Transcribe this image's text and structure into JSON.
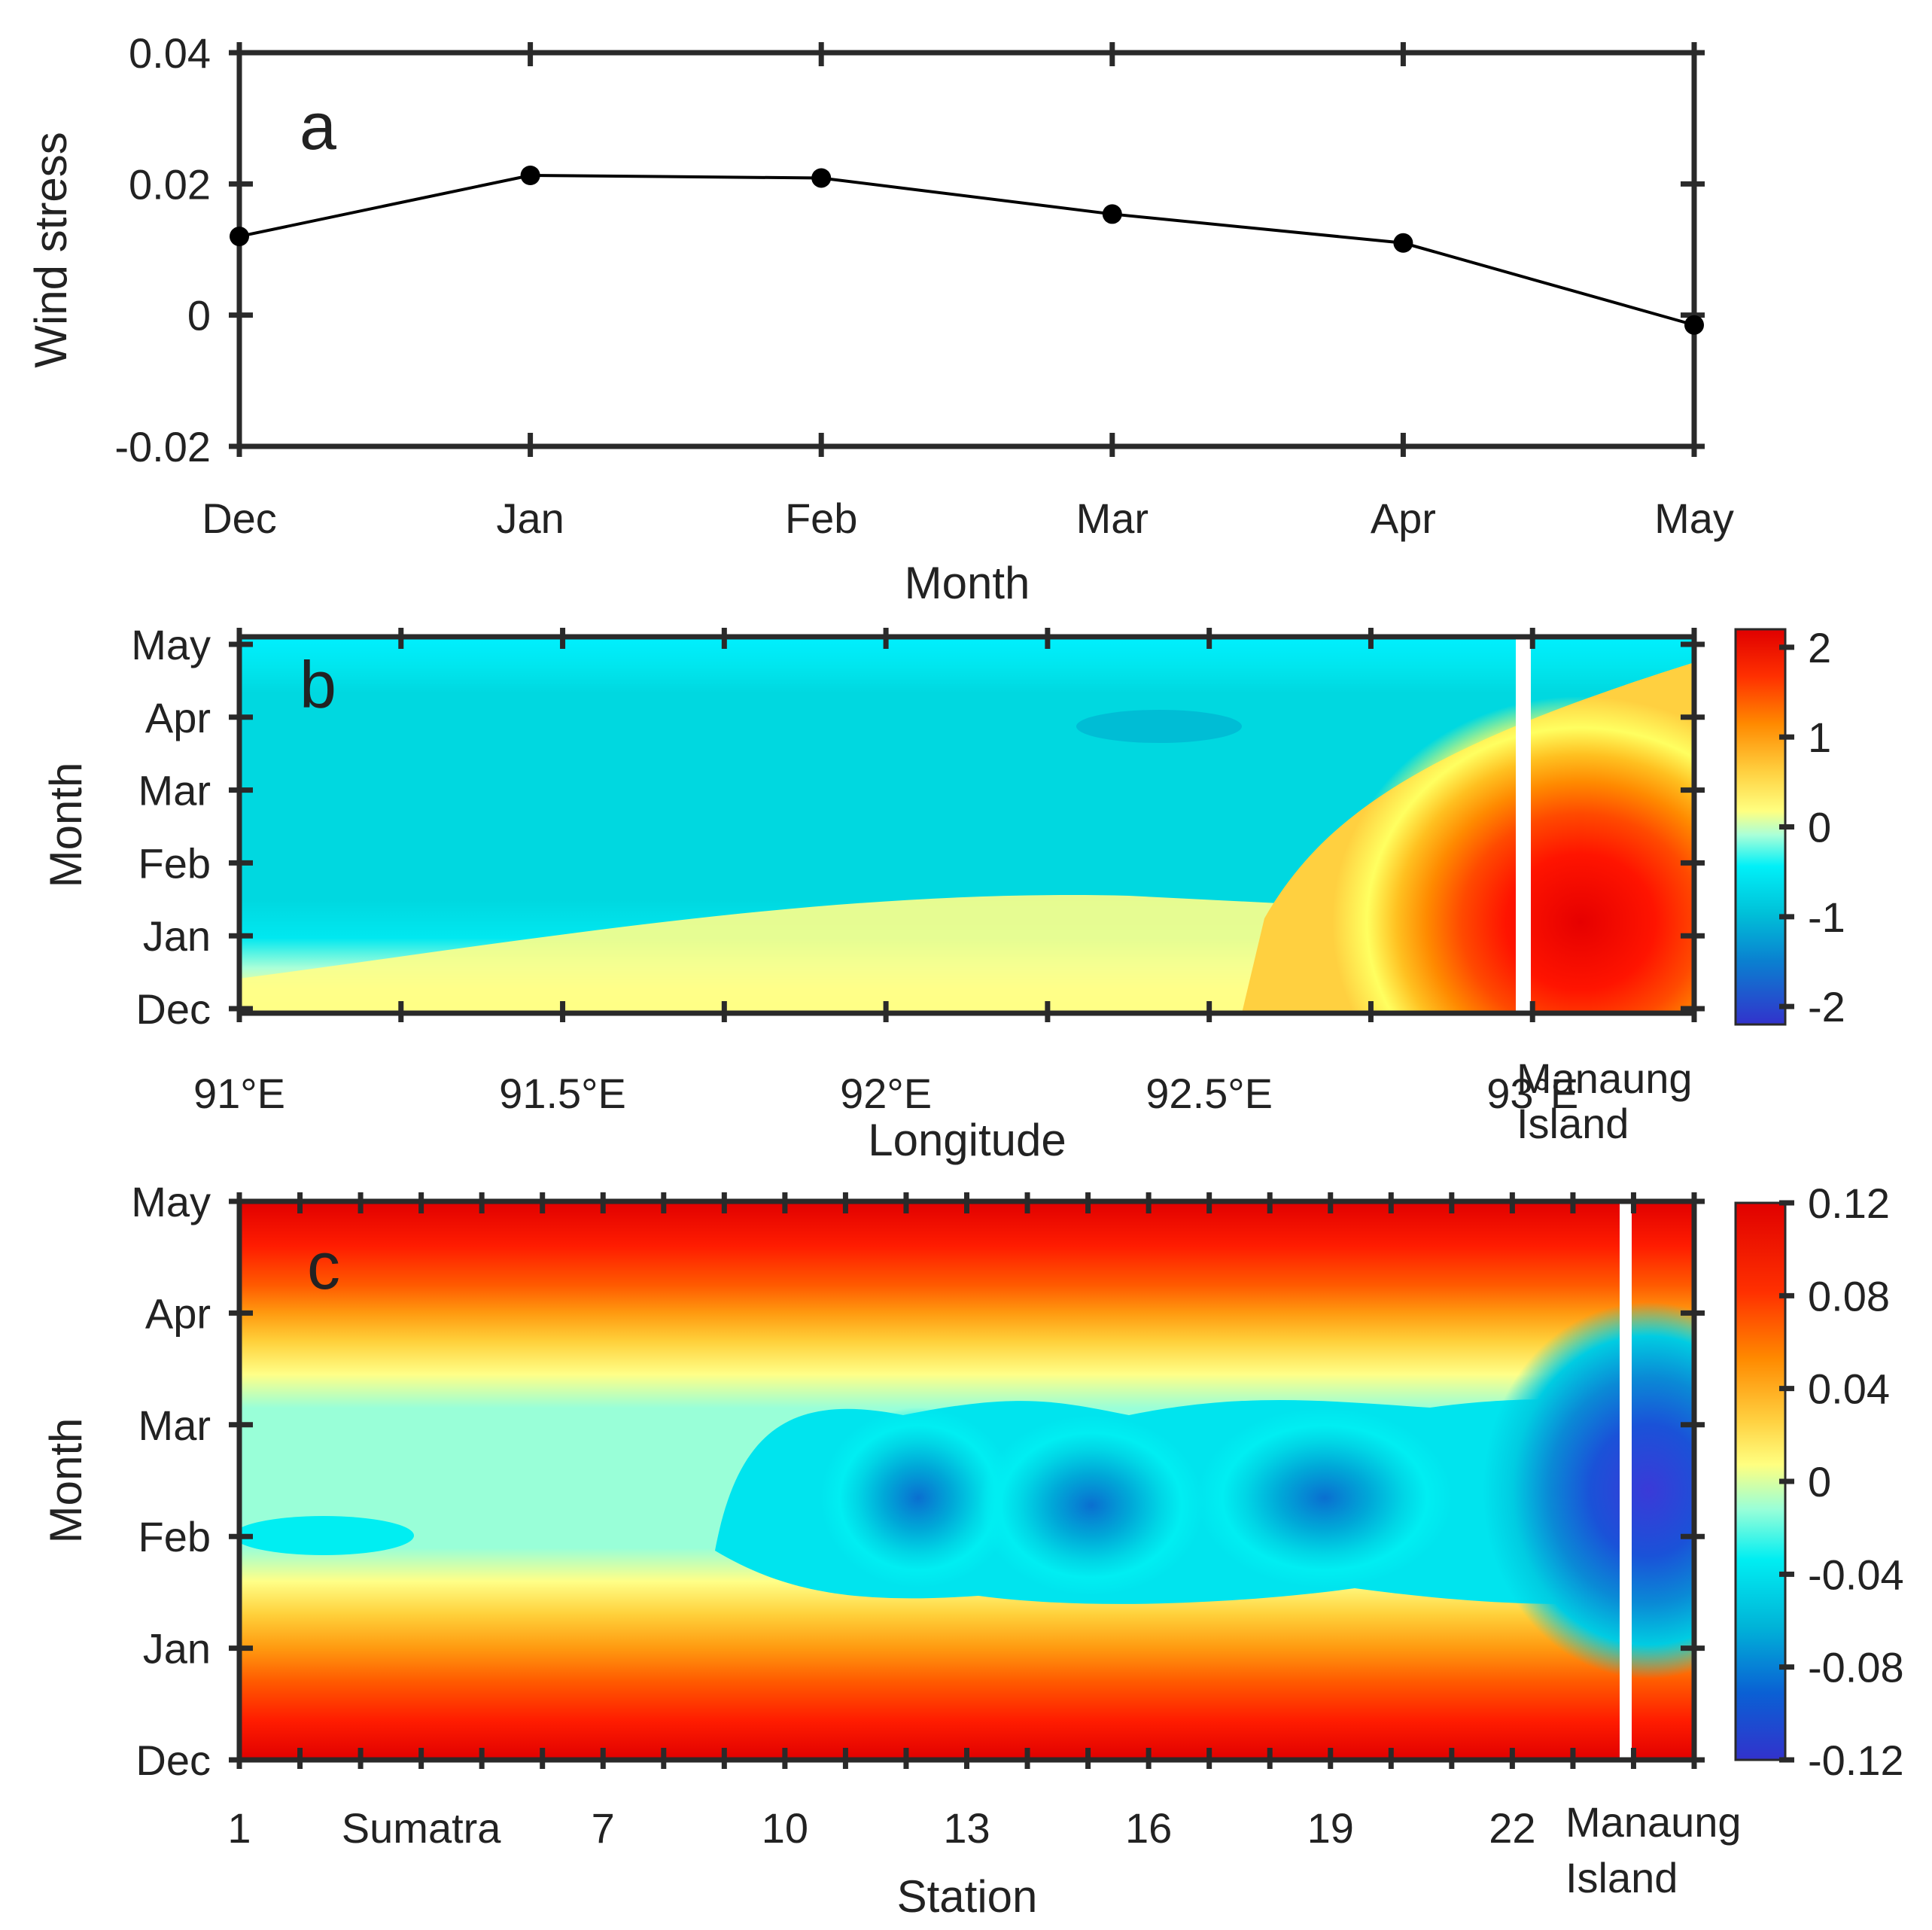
{
  "chart_data": [
    {
      "panel": "a",
      "type": "line",
      "panel_label": "a",
      "categories": [
        "Dec",
        "Jan",
        "Feb",
        "Mar",
        "Apr",
        "May"
      ],
      "series": [
        {
          "name": "Wind stress",
          "values": [
            0.012,
            0.0213,
            0.0209,
            0.0154,
            0.011,
            -0.0015
          ]
        }
      ],
      "xlabel": "Month",
      "ylabel": "Wind stress",
      "ylim": [
        -0.02,
        0.04
      ],
      "yticks": [
        -0.02,
        0,
        0.02,
        0.04
      ],
      "ytick_labels": [
        "-0.02",
        "0",
        "0.02",
        "0.04"
      ],
      "color": "#000000"
    },
    {
      "panel": "b",
      "type": "heatmap",
      "panel_label": "b",
      "xlabel": "Longitude",
      "ylabel": "Month",
      "xtick_labels": [
        "91°E",
        "91.5°E",
        "92°E",
        "92.5°E",
        "93°E"
      ],
      "xtick_values": [
        91,
        91.5,
        92,
        92.5,
        93
      ],
      "x_extra_label": [
        "Manaung",
        "Island"
      ],
      "xlim": [
        91,
        93.25
      ],
      "ytick_labels": [
        "Dec",
        "Jan",
        "Feb",
        "Mar",
        "Apr",
        "May"
      ],
      "colorbar": {
        "range": [
          -2.2,
          2.2
        ],
        "ticks": [
          2,
          1,
          0,
          -1,
          -2
        ],
        "tick_labels": [
          "2",
          "1",
          "0",
          "-1",
          "-2"
        ]
      },
      "description_levels": "positive anomaly near 93–93.25°E in Jan–Feb (~2), negative (~-0.6) west of 92.7°E"
    },
    {
      "panel": "c",
      "type": "heatmap",
      "panel_label": "c",
      "xlabel": "Station",
      "ylabel": "Month",
      "xtick_labels": [
        "1",
        "Sumatra",
        "7",
        "10",
        "13",
        "16",
        "19",
        "22"
      ],
      "x_extra_label": [
        "Manaung",
        "Island"
      ],
      "xlim": [
        1,
        25
      ],
      "ytick_labels": [
        "Dec",
        "Jan",
        "Feb",
        "Mar",
        "Apr",
        "May"
      ],
      "colorbar": {
        "range": [
          -0.12,
          0.12
        ],
        "ticks": [
          0.12,
          0.08,
          0.04,
          0,
          -0.04,
          -0.08,
          -0.12
        ],
        "tick_labels": [
          "0.12",
          "0.08",
          "0.04",
          "0",
          "-0.04",
          "-0.08",
          "-0.12"
        ]
      },
      "description_levels": "positive (~0.1) in Dec and May, negative (to ~-0.12) in Feb–Mar near Manaung Island"
    }
  ]
}
